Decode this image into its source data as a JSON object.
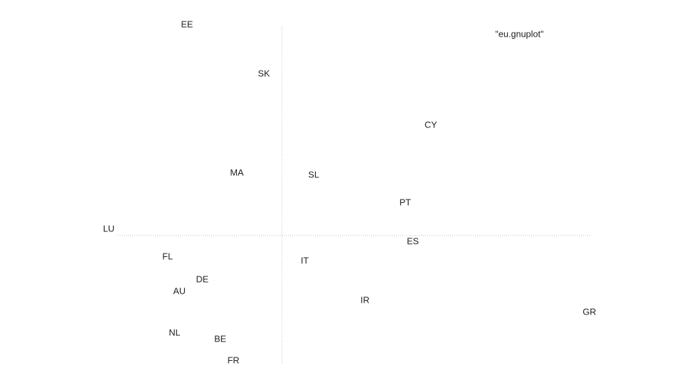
{
  "chart_data": {
    "type": "scatter",
    "series": [
      {
        "name": "\"eu.gnuplot\"",
        "color": "#222222",
        "labels": [
          "EE",
          "SK",
          "CY",
          "MA",
          "SL",
          "PT",
          "LU",
          "ES",
          "FL",
          "IT",
          "DE",
          "AU",
          "IR",
          "GR",
          "NL",
          "BE",
          "FR"
        ],
        "x": [
          -1.37,
          -0.26,
          2.15,
          -0.65,
          0.46,
          1.78,
          -2.5,
          1.89,
          -1.65,
          0.33,
          -1.15,
          -1.48,
          1.2,
          4.44,
          -1.55,
          -0.89,
          -0.7
        ],
        "values": [
          3.04,
          2.33,
          1.59,
          0.9,
          0.87,
          0.47,
          0.09,
          -0.09,
          -0.31,
          -0.37,
          -0.64,
          -0.81,
          -0.94,
          -1.11,
          -1.41,
          -1.5,
          -1.81
        ]
      }
    ],
    "xlim": [
      -2.37,
      4.45
    ],
    "ylim": [
      -1.85,
      3.02
    ],
    "zero_axes": true,
    "legend": "top-right"
  }
}
